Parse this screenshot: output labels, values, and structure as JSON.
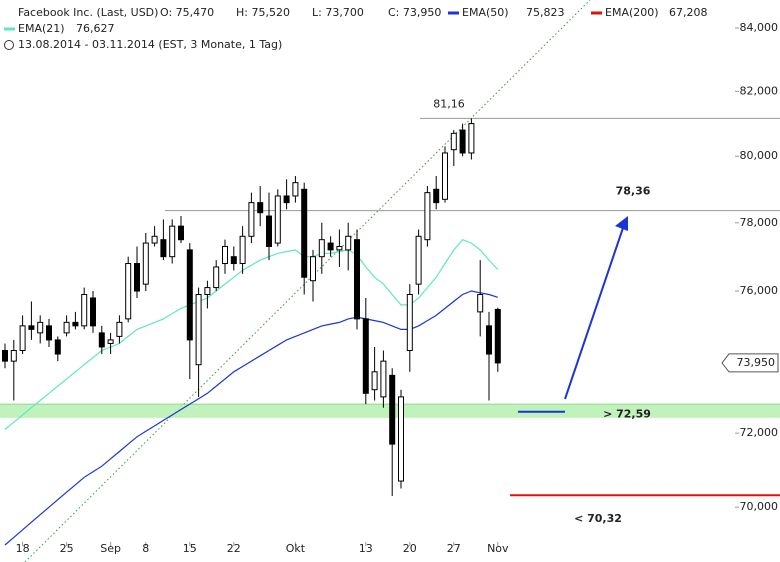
{
  "chart_data": {
    "type": "candlestick",
    "title": "Facebook Inc. (Last, USD)",
    "header_values": [
      "O: 75,470",
      "H: 75,520",
      "L: 73,700",
      "C: 73,950"
    ],
    "subtitle": "13.08.2014 - 03.11.2014 (EST, 3 Monate, 1 Tag)",
    "categories": [
      null,
      null,
      "18",
      null,
      null,
      null,
      null,
      "25",
      null,
      null,
      null,
      null,
      "Sep",
      null,
      null,
      null,
      "8",
      null,
      null,
      null,
      null,
      "15",
      null,
      null,
      null,
      null,
      "22",
      null,
      null,
      null,
      null,
      null,
      null,
      "Okt",
      null,
      null,
      null,
      null,
      null,
      null,
      null,
      "13",
      null,
      null,
      null,
      null,
      "20",
      null,
      null,
      null,
      null,
      "27",
      null,
      null,
      null,
      null,
      "Nov"
    ],
    "open": [
      74.3,
      74.0,
      74.3,
      75.0,
      74.8,
      75.0,
      74.6,
      74.8,
      75.1,
      75.0,
      75.8,
      74.8,
      74.5,
      74.7,
      75.2,
      76.8,
      76.2,
      77.4,
      77.5,
      77.0,
      77.9,
      77.2,
      73.9,
      75.9,
      76.1,
      76.8,
      77.0,
      76.8,
      77.6,
      78.6,
      78.2,
      77.4,
      78.8,
      78.8,
      79.0,
      76.3,
      77.0,
      77.4,
      77.2,
      77.2,
      77.5,
      75.2,
      73.2,
      73.0,
      73.6,
      70.7,
      74.3,
      76.2,
      77.5,
      79.0,
      78.7,
      80.2,
      80.8,
      80.1,
      75.4,
      75.0,
      75.47
    ],
    "high": [
      74.5,
      74.6,
      75.3,
      75.7,
      75.3,
      75.2,
      74.7,
      75.3,
      75.4,
      76.1,
      76.0,
      75.0,
      74.8,
      75.3,
      77.0,
      77.3,
      77.7,
      77.9,
      78.1,
      78.1,
      78.2,
      77.4,
      76.1,
      76.3,
      76.9,
      77.5,
      77.3,
      77.9,
      78.9,
      79.1,
      78.9,
      79.0,
      79.3,
      79.4,
      79.2,
      77.2,
      78.0,
      77.6,
      77.8,
      78.0,
      77.8,
      75.8,
      74.4,
      74.3,
      73.8,
      73.2,
      76.2,
      77.8,
      79.1,
      79.4,
      80.3,
      80.8,
      81.0,
      81.16,
      76.9,
      75.4,
      75.52
    ],
    "low": [
      73.8,
      72.9,
      74.2,
      74.6,
      74.5,
      74.4,
      74.0,
      74.7,
      74.9,
      74.9,
      74.8,
      74.2,
      74.2,
      74.5,
      75.1,
      75.8,
      76.0,
      77.3,
      76.9,
      76.8,
      77.4,
      73.5,
      73.0,
      75.5,
      76.0,
      76.5,
      76.6,
      76.5,
      77.4,
      77.9,
      76.9,
      77.3,
      78.4,
      78.6,
      75.9,
      75.7,
      76.5,
      77.0,
      76.7,
      76.6,
      74.9,
      72.8,
      72.9,
      72.7,
      70.3,
      70.5,
      73.7,
      75.9,
      77.3,
      78.4,
      78.6,
      79.7,
      80.0,
      79.9,
      74.7,
      72.9,
      73.7
    ],
    "close": [
      74.0,
      74.3,
      75.0,
      74.9,
      75.1,
      74.6,
      74.2,
      75.1,
      75.0,
      75.9,
      75.0,
      74.4,
      74.6,
      75.1,
      76.8,
      76.0,
      77.4,
      77.6,
      77.0,
      77.9,
      77.5,
      74.6,
      75.9,
      76.1,
      76.7,
      77.3,
      76.8,
      77.6,
      78.6,
      78.3,
      77.3,
      78.8,
      78.6,
      79.2,
      76.4,
      77.0,
      77.5,
      77.2,
      77.3,
      77.6,
      75.2,
      73.1,
      73.7,
      74.0,
      71.7,
      73.0,
      75.9,
      77.6,
      78.9,
      78.6,
      80.1,
      80.7,
      80.1,
      81.0,
      75.9,
      74.2,
      73.95
    ],
    "last_price_label": "73,950",
    "indicators": [
      {
        "name": "EMA(50)",
        "value_label": "75,823",
        "color": "#1a35d6",
        "values": [
          69.0,
          69.2,
          69.4,
          69.6,
          69.8,
          70.0,
          70.2,
          70.4,
          70.6,
          70.8,
          70.95,
          71.1,
          71.3,
          71.5,
          71.7,
          71.9,
          72.05,
          72.2,
          72.35,
          72.5,
          72.65,
          72.8,
          72.95,
          73.1,
          73.3,
          73.5,
          73.7,
          73.85,
          74.0,
          74.15,
          74.3,
          74.45,
          74.6,
          74.7,
          74.8,
          74.9,
          75.0,
          75.05,
          75.1,
          75.2,
          75.25,
          75.2,
          75.15,
          75.1,
          75.0,
          74.9,
          74.9,
          75.0,
          75.15,
          75.3,
          75.5,
          75.7,
          75.9,
          76.0,
          75.95,
          75.9,
          75.82
        ]
      },
      {
        "name": "EMA(200)",
        "value_label": "67,208",
        "color": "#e01010"
      },
      {
        "name": "EMA(21)",
        "value_label": "76,627",
        "color": "#5fe6c6",
        "values": [
          72.1,
          72.3,
          72.5,
          72.7,
          72.9,
          73.1,
          73.3,
          73.5,
          73.7,
          73.9,
          74.1,
          74.3,
          74.4,
          74.5,
          74.7,
          74.9,
          75.0,
          75.1,
          75.2,
          75.35,
          75.5,
          75.6,
          75.7,
          75.8,
          76.0,
          76.2,
          76.4,
          76.6,
          76.75,
          76.9,
          77.0,
          77.1,
          77.15,
          77.2,
          77.0,
          77.0,
          77.1,
          77.1,
          77.15,
          77.2,
          77.05,
          76.7,
          76.4,
          76.2,
          75.9,
          75.6,
          75.6,
          75.8,
          76.1,
          76.4,
          76.8,
          77.2,
          77.5,
          77.4,
          77.2,
          76.9,
          76.63
        ]
      }
    ],
    "levels": [
      {
        "value": 81.16,
        "label": "81,16",
        "color": "#999999"
      },
      {
        "value": 78.36,
        "label": "78,36",
        "color": "#999999"
      },
      {
        "value": 72.59,
        "label": "> 72,59",
        "color": "#1a35d6",
        "band": [
          72.42,
          72.8
        ]
      },
      {
        "value": 70.32,
        "label": "< 70,32",
        "color": "#e01010"
      }
    ],
    "log_scale": true,
    "ylim": [
      69,
      84.9
    ],
    "yticks": [
      {
        "value": 70,
        "label": "70,000"
      },
      {
        "value": 72,
        "label": "72,000"
      },
      {
        "value": 76,
        "label": "76,000"
      },
      {
        "value": 78,
        "label": "78,000"
      },
      {
        "value": 80,
        "label": "80,000"
      },
      {
        "value": 82,
        "label": "82,000"
      },
      {
        "value": 84,
        "label": "84,000"
      }
    ]
  }
}
